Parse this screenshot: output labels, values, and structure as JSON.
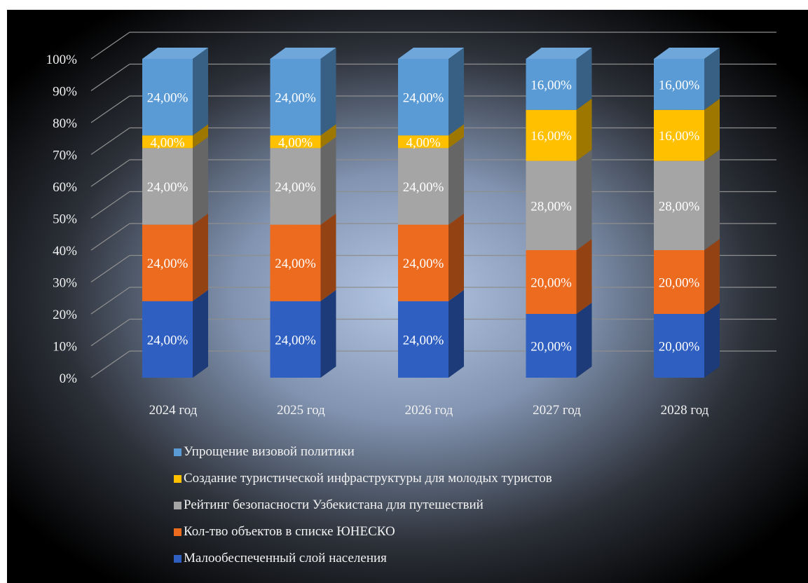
{
  "chart_data": {
    "type": "bar",
    "stacked": true,
    "three_d": true,
    "categories": [
      "2024 год",
      "2025 год",
      "2026 год",
      "2027 год",
      "2028 год"
    ],
    "y_ticks": [
      "0%",
      "10%",
      "20%",
      "30%",
      "40%",
      "50%",
      "60%",
      "70%",
      "80%",
      "90%",
      "100%"
    ],
    "ylim": [
      0,
      100
    ],
    "grid": true,
    "legend_position": "bottom",
    "series": [
      {
        "name": "Малообеспеченный слой населения",
        "values": [
          24,
          24,
          24,
          20,
          20
        ],
        "labels": [
          "24,00%",
          "24,00%",
          "24,00%",
          "20,00%",
          "20,00%"
        ],
        "color": "#2e5fc1"
      },
      {
        "name": "Кол-тво объектов в списке ЮНЕСКО",
        "values": [
          24,
          24,
          24,
          20,
          20
        ],
        "labels": [
          "24,00%",
          "24,00%",
          "24,00%",
          "20,00%",
          "20,00%"
        ],
        "color": "#ed6b1f"
      },
      {
        "name": "Рейтинг безопасности Узбекистана для путешествий",
        "values": [
          24,
          24,
          24,
          28,
          28
        ],
        "labels": [
          "24,00%",
          "24,00%",
          "24,00%",
          "28,00%",
          "28,00%"
        ],
        "color": "#a5a5a5"
      },
      {
        "name": "Создание туристической инфраструктуры для молодых туристов",
        "values": [
          4,
          4,
          4,
          16,
          16
        ],
        "labels": [
          "4,00%",
          "4,00%",
          "4,00%",
          "16,00%",
          "16,00%"
        ],
        "color": "#ffc000"
      },
      {
        "name": "Упрощение визовой политики",
        "values": [
          24,
          24,
          24,
          16,
          16
        ],
        "labels": [
          "24,00%",
          "24,00%",
          "24,00%",
          "16,00%",
          "16,00%"
        ],
        "color": "#5b9bd5"
      }
    ]
  }
}
